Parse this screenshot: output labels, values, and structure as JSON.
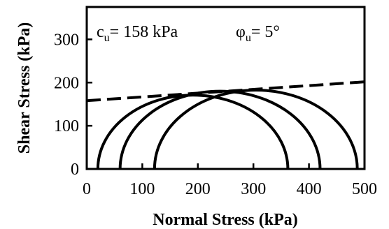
{
  "chart_data": {
    "type": "line",
    "title": "",
    "xlabel": "Normal Stress (kPa)",
    "ylabel": "Shear Stress (kPa)",
    "xlim": [
      0,
      500
    ],
    "ylim": [
      0,
      375
    ],
    "xticks": [
      "0",
      "100",
      "200",
      "300",
      "400",
      "500"
    ],
    "yticks": [
      "0",
      "100",
      "200",
      "300"
    ],
    "grid": false,
    "annotations": {
      "cu": {
        "symbol": "c",
        "sub": "u",
        "text": "= 158 kPa"
      },
      "phi": {
        "symbol": "φ",
        "sub": "u",
        "text": "= 5°"
      }
    },
    "failure_envelope": {
      "style": "dashed",
      "intercept": 158,
      "slope": 0.0875,
      "x": [
        0,
        500
      ],
      "y": [
        158,
        201.7
      ]
    },
    "mohr_circles": [
      {
        "sigma3": 20,
        "sigma1": 362
      },
      {
        "sigma3": 60,
        "sigma1": 420
      },
      {
        "sigma3": 122,
        "sigma1": 487
      }
    ]
  }
}
